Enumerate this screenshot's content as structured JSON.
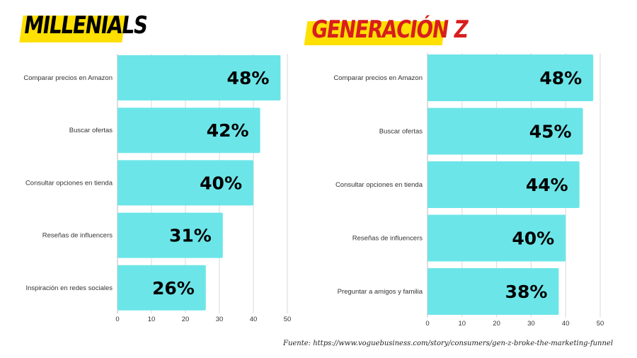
{
  "charts": [
    {
      "title": "MILLENIALS",
      "title_color": "#000000",
      "title_highlight": "#ffe000"
    },
    {
      "title": "GENERACIÓN Z",
      "title_color": "#d81e1e",
      "title_highlight": "#ffe000"
    }
  ],
  "chart_data": [
    {
      "type": "bar",
      "orientation": "horizontal",
      "title": "MILLENIALS",
      "categories": [
        "Comparar precios en Amazon",
        "Buscar ofertas",
        "Consultar opciones en tienda",
        "Reseñas de influencers",
        "Inspiración en redes sociales"
      ],
      "values": [
        48,
        42,
        40,
        31,
        26
      ],
      "data_labels": [
        "48%",
        "42%",
        "40%",
        "31%",
        "26%"
      ],
      "xlim": [
        0,
        50
      ],
      "xticks": [
        0,
        10,
        20,
        30,
        40,
        50
      ],
      "grid": true,
      "bar_color": "#6ce5e8"
    },
    {
      "type": "bar",
      "orientation": "horizontal",
      "title": "GENERACIÓN Z",
      "categories": [
        "Comparar precios en Amazon",
        "Buscar ofertas",
        "Consultar opciones en tienda",
        "Reseñas de influencers",
        "Preguntar a amigos y familia"
      ],
      "values": [
        48,
        45,
        44,
        40,
        38
      ],
      "data_labels": [
        "48%",
        "45%",
        "44%",
        "40%",
        "38%"
      ],
      "xlim": [
        0,
        50
      ],
      "xticks": [
        0,
        10,
        20,
        30,
        40,
        50
      ],
      "grid": true,
      "bar_color": "#6ce5e8"
    }
  ],
  "source": "Fuente: https://www.voguebusiness.com/story/consumers/gen-z-broke-the-marketing-funnel"
}
